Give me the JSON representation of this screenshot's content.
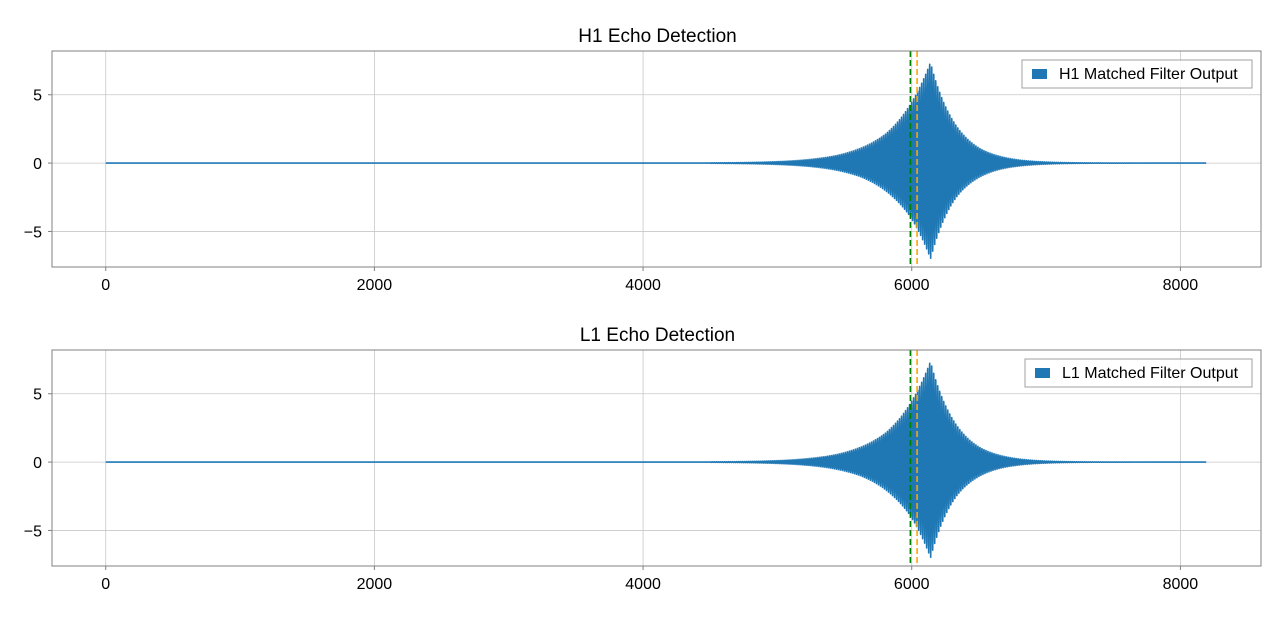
{
  "chart_data": [
    {
      "type": "line",
      "title": "H1 Echo Detection",
      "xlim": [
        -400,
        8600
      ],
      "ylim": [
        -7.6,
        8.2
      ],
      "xticks": [
        0,
        2000,
        4000,
        6000,
        8000
      ],
      "xtick_labels": [
        "0",
        "2000",
        "4000",
        "6000",
        "8000"
      ],
      "yticks": [
        5,
        0,
        -5
      ],
      "ytick_labels": [
        "5",
        "0",
        "−5"
      ],
      "grid": true,
      "legend_position": "top-right",
      "series": [
        {
          "name": "H1 Matched Filter Output",
          "color": "#1f77b4",
          "x_start": 0,
          "x_end": 8192,
          "peak_x": 6140,
          "peak_max": 7.5,
          "peak_min": -7.0,
          "envelope_start_x": 4500
        }
      ],
      "vlines": [
        {
          "x": 5990,
          "color": "#008000",
          "style": "dashed"
        },
        {
          "x": 6040,
          "color": "#ffa500",
          "style": "dashed"
        }
      ]
    },
    {
      "type": "line",
      "title": "L1 Echo Detection",
      "xlim": [
        -400,
        8600
      ],
      "ylim": [
        -7.6,
        8.2
      ],
      "xticks": [
        0,
        2000,
        4000,
        6000,
        8000
      ],
      "xtick_labels": [
        "0",
        "2000",
        "4000",
        "6000",
        "8000"
      ],
      "yticks": [
        5,
        0,
        -5
      ],
      "ytick_labels": [
        "5",
        "0",
        "−5"
      ],
      "grid": true,
      "legend_position": "top-right",
      "series": [
        {
          "name": "L1 Matched Filter Output",
          "color": "#1f77b4",
          "x_start": 0,
          "x_end": 8192,
          "peak_x": 6140,
          "peak_max": 7.5,
          "peak_min": -7.0,
          "envelope_start_x": 4500
        }
      ],
      "vlines": [
        {
          "x": 5990,
          "color": "#008000",
          "style": "dashed"
        },
        {
          "x": 6040,
          "color": "#ffa500",
          "style": "dashed"
        }
      ]
    }
  ]
}
